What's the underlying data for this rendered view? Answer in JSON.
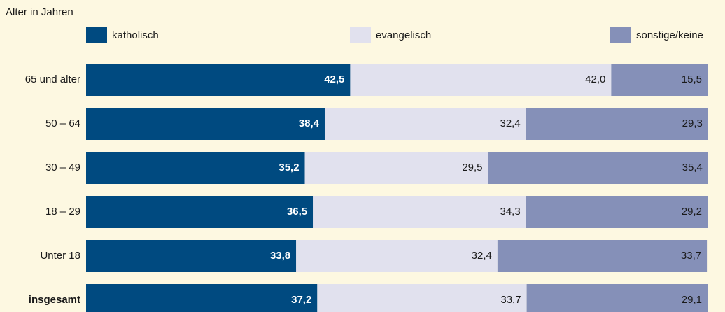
{
  "chart_data": {
    "type": "stacked-bar-horizontal",
    "title": "Alter in Jahren",
    "categories": [
      "65 und älter",
      "50 – 64",
      "30 – 49",
      "18 – 29",
      "Unter 18",
      "insgesamt"
    ],
    "series": [
      {
        "name": "katholisch",
        "color": "#004a80",
        "values": [
          42.5,
          38.4,
          35.2,
          36.5,
          33.8,
          37.2
        ],
        "value_labels": [
          "42,5",
          "38,4",
          "35,2",
          "36,5",
          "33,8",
          "37,2"
        ]
      },
      {
        "name": "evangelisch",
        "color": "#e1e1ee",
        "values": [
          42.0,
          32.4,
          29.5,
          34.3,
          32.4,
          33.7
        ],
        "value_labels": [
          "42,0",
          "32,4",
          "29,5",
          "34,3",
          "32,4",
          "33,7"
        ]
      },
      {
        "name": "sonstige/keine",
        "color": "#8590b8",
        "values": [
          15.5,
          29.3,
          35.4,
          29.2,
          33.7,
          29.1
        ],
        "value_labels": [
          "15,5",
          "29,3",
          "35,4",
          "29,2",
          "33,7",
          "29,1"
        ]
      }
    ],
    "xlim": [
      0,
      100
    ]
  }
}
